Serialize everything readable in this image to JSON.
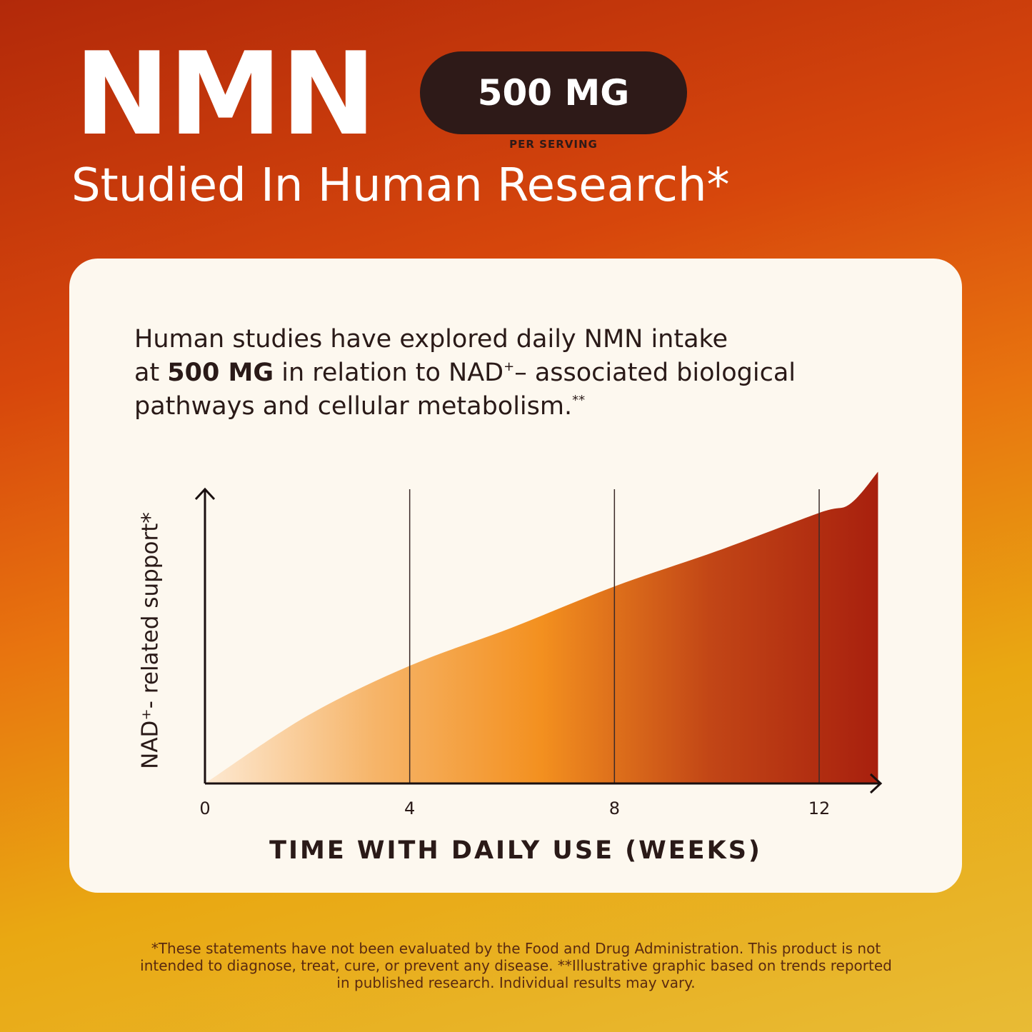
{
  "header": {
    "title": "NMN",
    "badge": "500 MG",
    "badge_note": "PER SERVING",
    "subtitle": "Studied In Human Research*"
  },
  "body": {
    "line1": "Human studies have explored daily NMN intake",
    "line2": [
      "at ",
      "500 MG",
      " in relation to NAD",
      "+",
      "– associated biological"
    ],
    "line3": [
      "pathways and cellular metabolism.",
      "**"
    ]
  },
  "chart_data": {
    "type": "area",
    "x": [
      0,
      2,
      4,
      6,
      8,
      10,
      12,
      12.6,
      13.15
    ],
    "values": [
      0,
      23,
      40,
      53,
      67,
      79,
      92,
      95,
      106
    ],
    "xlim": [
      0,
      13.2
    ],
    "ylim": [
      0,
      110
    ],
    "xticks": [
      0,
      4,
      8,
      12
    ],
    "x_label": "TIME WITH DAILY USE (WEEKS)",
    "y_label": "NAD⁺- related support*",
    "grid": true,
    "colors": [
      "#fde9d2",
      "#f6b56a",
      "#f3901f",
      "#c24616",
      "#a8200e"
    ]
  },
  "footnote": [
    "*These statements have not been evaluated by the Food and Drug Administration. This product is not",
    "intended to diagnose, treat, cure, or prevent any disease. **Illustrative graphic based on trends reported",
    "in published research. Individual results may vary."
  ]
}
